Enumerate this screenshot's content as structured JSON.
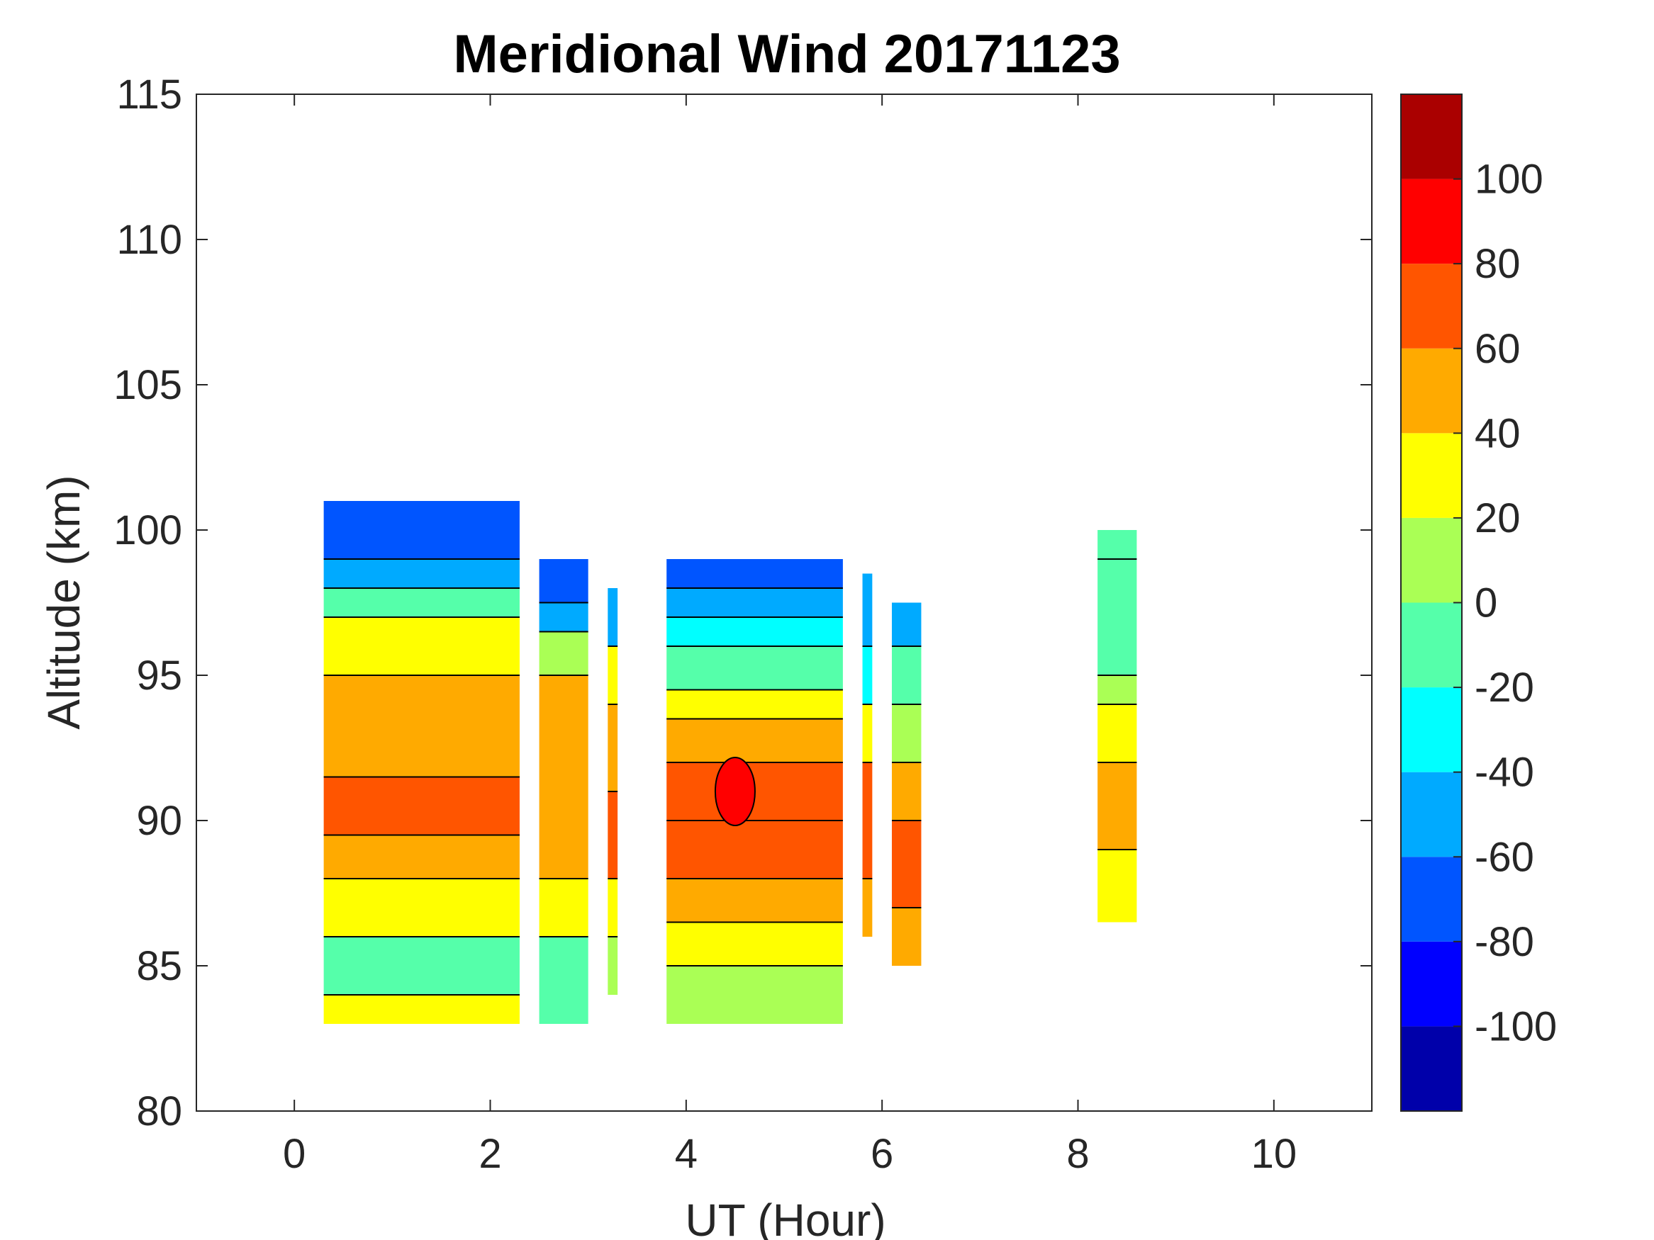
{
  "chart_data": {
    "type": "heatmap",
    "title": "Meridional Wind 20171123",
    "xlabel": "UT (Hour)",
    "ylabel": "Altitude (km)",
    "xlim": [
      -1,
      11
    ],
    "ylim": [
      80,
      115
    ],
    "xticks": [
      "0",
      "2",
      "4",
      "6",
      "8",
      "10"
    ],
    "xtick_values": [
      0,
      2,
      4,
      6,
      8,
      10
    ],
    "yticks": [
      "80",
      "85",
      "90",
      "95",
      "100",
      "105",
      "110",
      "115"
    ],
    "ytick_values": [
      80,
      85,
      90,
      95,
      100,
      105,
      110,
      115
    ],
    "colorbar": {
      "ticks": [
        "-100",
        "-80",
        "-60",
        "-40",
        "-20",
        "0",
        "20",
        "40",
        "60",
        "80",
        "100"
      ],
      "tick_values": [
        -100,
        -80,
        -60,
        -40,
        -20,
        0,
        20,
        40,
        60,
        80,
        100
      ],
      "range": [
        -120,
        120
      ],
      "levels": [
        -120,
        -100,
        -80,
        -60,
        -40,
        -20,
        0,
        20,
        40,
        60,
        80,
        100,
        120
      ],
      "colors": [
        "#0000aa",
        "#0000ff",
        "#0055ff",
        "#00aaff",
        "#00ffff",
        "#55ffaa",
        "#aaff55",
        "#ffff00",
        "#ffaa00",
        "#ff5500",
        "#ff0000",
        "#aa0000"
      ]
    },
    "columns": [
      {
        "x_start": 0.3,
        "x_end": 2.3,
        "alt_bottom": 83,
        "alt_top": 101,
        "bands": [
          [
            83,
            84,
            20
          ],
          [
            84,
            86,
            -20
          ],
          [
            86,
            88,
            20
          ],
          [
            88,
            89.5,
            40
          ],
          [
            89.5,
            91.5,
            60
          ],
          [
            91.5,
            95,
            40
          ],
          [
            95,
            97,
            20
          ],
          [
            97,
            98,
            -20
          ],
          [
            98,
            99,
            -60
          ],
          [
            99,
            101,
            -80
          ]
        ]
      },
      {
        "x_start": 2.5,
        "x_end": 3.0,
        "alt_bottom": 83,
        "alt_top": 99,
        "bands": [
          [
            83,
            86,
            -20
          ],
          [
            86,
            88,
            20
          ],
          [
            88,
            95,
            40
          ],
          [
            95,
            96.5,
            0
          ],
          [
            96.5,
            97.5,
            -60
          ],
          [
            97.5,
            99,
            -80
          ]
        ]
      },
      {
        "x_start": 3.2,
        "x_end": 3.3,
        "alt_bottom": 84,
        "alt_top": 98,
        "bands": [
          [
            84,
            86,
            0
          ],
          [
            86,
            88,
            20
          ],
          [
            88,
            91,
            60
          ],
          [
            91,
            94,
            40
          ],
          [
            94,
            96,
            20
          ],
          [
            96,
            98,
            -60
          ]
        ]
      },
      {
        "x_start": 3.8,
        "x_end": 5.6,
        "alt_bottom": 83,
        "alt_top": 99,
        "bands": [
          [
            83,
            85,
            0
          ],
          [
            85,
            86.5,
            20
          ],
          [
            86.5,
            88,
            40
          ],
          [
            88,
            90,
            60
          ],
          [
            90,
            92,
            60
          ],
          [
            92,
            93.5,
            40
          ],
          [
            93.5,
            94.5,
            20
          ],
          [
            94.5,
            96,
            -20
          ],
          [
            96,
            97,
            -40
          ],
          [
            97,
            98,
            -60
          ],
          [
            98,
            99,
            -80
          ]
        ]
      },
      {
        "x_start": 5.8,
        "x_end": 5.9,
        "alt_bottom": 86,
        "alt_top": 98.5,
        "bands": [
          [
            86,
            88,
            40
          ],
          [
            88,
            92,
            60
          ],
          [
            92,
            94,
            20
          ],
          [
            94,
            96,
            -40
          ],
          [
            96,
            98.5,
            -60
          ]
        ]
      },
      {
        "x_start": 6.1,
        "x_end": 6.4,
        "alt_bottom": 85,
        "alt_top": 97.5,
        "bands": [
          [
            85,
            87,
            40
          ],
          [
            87,
            90,
            60
          ],
          [
            90,
            92,
            40
          ],
          [
            92,
            94,
            0
          ],
          [
            94,
            96,
            -20
          ],
          [
            96,
            97.5,
            -60
          ]
        ]
      },
      {
        "x_start": 8.2,
        "x_end": 8.6,
        "alt_bottom": 86.5,
        "alt_top": 100,
        "bands": [
          [
            86.5,
            89,
            20
          ],
          [
            89,
            92,
            40
          ],
          [
            92,
            94,
            20
          ],
          [
            94,
            95,
            0
          ],
          [
            95,
            99,
            -20
          ],
          [
            99,
            100,
            -20
          ]
        ]
      }
    ],
    "peak_marker": {
      "x": 4.5,
      "alt": 91,
      "value": 80
    }
  }
}
